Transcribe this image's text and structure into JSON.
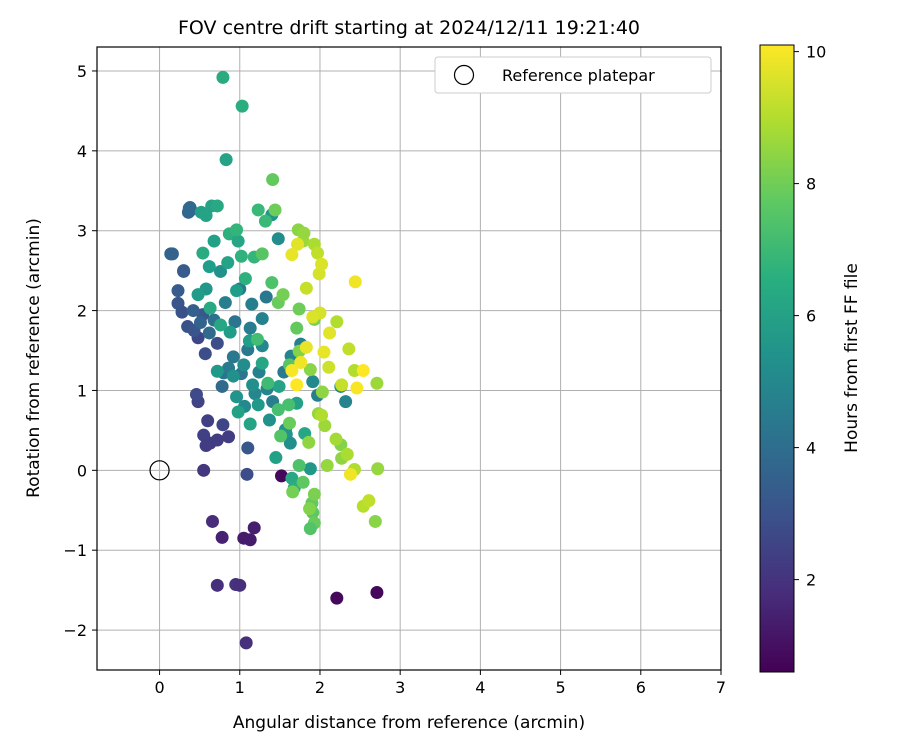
{
  "chart_data": {
    "type": "scatter",
    "title": "FOV centre drift starting at 2024/12/11 19:21:40",
    "xlabel": "Angular distance from reference (arcmin)",
    "ylabel": "Rotation from reference (arcmin)",
    "xlim": [
      -0.78,
      7.0
    ],
    "ylim": [
      -2.5,
      5.3
    ],
    "xticks": [
      0,
      1,
      2,
      3,
      4,
      5,
      6,
      7
    ],
    "yticks": [
      -2,
      -1,
      0,
      1,
      2,
      3,
      4,
      5
    ],
    "grid": true,
    "legend": {
      "position": "top-right",
      "entries": [
        "Reference platepar"
      ]
    },
    "reference_point": {
      "name": "Reference platepar",
      "x": 0,
      "y": 0,
      "marker": "open-circle"
    },
    "colorbar": {
      "label": "Hours from first FF file",
      "range": [
        0.6,
        10.1
      ],
      "ticks": [
        2,
        4,
        6,
        8,
        10
      ],
      "colormap": "viridis"
    },
    "series": [
      {
        "points": [
          [
            1.52,
            -0.07,
            0.8
          ],
          [
            2.21,
            -1.6,
            0.8
          ],
          [
            2.71,
            -1.53,
            0.8
          ],
          [
            1.05,
            -0.85,
            1.3
          ],
          [
            1.13,
            -0.87,
            1.3
          ],
          [
            1.18,
            -0.72,
            1.4
          ],
          [
            0.78,
            -0.84,
            1.5
          ],
          [
            0.66,
            -0.64,
            1.8
          ],
          [
            0.72,
            -1.44,
            1.9
          ],
          [
            0.95,
            -1.43,
            2.0
          ],
          [
            1.0,
            -1.44,
            1.9
          ],
          [
            1.08,
            -2.16,
            1.9
          ],
          [
            0.55,
            0.0,
            2.1
          ],
          [
            0.63,
            0.34,
            2.2
          ],
          [
            0.72,
            0.38,
            2.3
          ],
          [
            0.86,
            0.42,
            2.3
          ],
          [
            0.55,
            0.44,
            2.4
          ],
          [
            0.58,
            0.31,
            2.3
          ],
          [
            0.6,
            0.62,
            2.4
          ],
          [
            0.48,
            0.86,
            2.5
          ],
          [
            0.79,
            0.57,
            2.6
          ],
          [
            0.46,
            0.95,
            2.7
          ],
          [
            1.09,
            -0.05,
            2.8
          ],
          [
            1.1,
            0.28,
            3.2
          ],
          [
            0.57,
            1.46,
            2.8
          ],
          [
            0.48,
            1.66,
            2.6
          ],
          [
            0.72,
            1.59,
            2.8
          ],
          [
            0.35,
            1.8,
            3.0
          ],
          [
            0.43,
            1.75,
            3.1
          ],
          [
            0.54,
            1.95,
            3.2
          ],
          [
            0.23,
            2.09,
            3.1
          ],
          [
            0.28,
            1.98,
            3.0
          ],
          [
            0.23,
            2.25,
            3.3
          ],
          [
            0.3,
            2.5,
            3.4
          ],
          [
            0.14,
            2.71,
            3.6
          ],
          [
            0.16,
            2.71,
            3.6
          ],
          [
            0.36,
            3.23,
            3.7
          ],
          [
            0.38,
            3.29,
            3.8
          ],
          [
            0.39,
            3.26,
            3.7
          ],
          [
            0.37,
            3.28,
            3.8
          ],
          [
            0.3,
            2.49,
            3.3
          ],
          [
            0.42,
            2.0,
            3.5
          ],
          [
            0.51,
            1.85,
            3.6
          ],
          [
            0.62,
            1.72,
            3.9
          ],
          [
            0.68,
            1.88,
            4.1
          ],
          [
            0.78,
            1.05,
            3.9
          ],
          [
            0.8,
            1.22,
            4.2
          ],
          [
            0.86,
            1.28,
            4.5
          ],
          [
            0.92,
            1.42,
            4.4
          ],
          [
            1.02,
            1.21,
            4.3
          ],
          [
            1.1,
            1.51,
            4.4
          ],
          [
            0.94,
            1.86,
            4.3
          ],
          [
            0.82,
            2.1,
            4.6
          ],
          [
            1.0,
            2.27,
            4.5
          ],
          [
            1.15,
            2.08,
            4.7
          ],
          [
            1.28,
            1.9,
            4.8
          ],
          [
            1.33,
            2.17,
            4.4
          ],
          [
            1.13,
            1.78,
            4.6
          ],
          [
            1.24,
            1.23,
            4.8
          ],
          [
            1.34,
            1.02,
            4.9
          ],
          [
            1.41,
            0.86,
            4.6
          ],
          [
            1.55,
            1.23,
            4.5
          ],
          [
            2.32,
            0.86,
            4.9
          ],
          [
            2.26,
            1.05,
            5.0
          ],
          [
            1.97,
            0.94,
            4.7
          ],
          [
            1.64,
            1.43,
            4.9
          ],
          [
            1.76,
            1.58,
            4.8
          ],
          [
            1.91,
            1.11,
            5.1
          ],
          [
            1.19,
            0.96,
            5.0
          ],
          [
            1.06,
            0.8,
            5.1
          ],
          [
            1.48,
            2.9,
            5.2
          ],
          [
            1.4,
            3.2,
            5.6
          ],
          [
            1.28,
            1.56,
            5.1
          ],
          [
            1.16,
            1.07,
            5.3
          ],
          [
            1.05,
            1.32,
            5.2
          ],
          [
            0.92,
            1.18,
            5.4
          ],
          [
            0.96,
            0.92,
            5.5
          ],
          [
            1.23,
            0.82,
            5.7
          ],
          [
            1.37,
            0.63,
            5.4
          ],
          [
            1.58,
            0.45,
            5.6
          ],
          [
            1.88,
            0.02,
            5.6
          ],
          [
            1.63,
            0.34,
            5.3
          ],
          [
            1.57,
            0.51,
            5.5
          ],
          [
            0.76,
            2.49,
            5.4
          ],
          [
            0.58,
            2.27,
            5.6
          ],
          [
            0.48,
            2.2,
            5.8
          ],
          [
            0.62,
            2.55,
            5.9
          ],
          [
            0.68,
            2.87,
            6.0
          ],
          [
            0.85,
            2.6,
            6.1
          ],
          [
            0.96,
            2.25,
            5.9
          ],
          [
            0.88,
            1.73,
            5.8
          ],
          [
            0.72,
            1.24,
            5.7
          ],
          [
            0.98,
            0.73,
            6.0
          ],
          [
            1.13,
            0.58,
            6.1
          ],
          [
            1.12,
            1.62,
            5.9
          ],
          [
            1.28,
            1.34,
            6.2
          ],
          [
            1.49,
            1.05,
            6.1
          ],
          [
            1.71,
            0.84,
            6.0
          ],
          [
            1.81,
            0.46,
            6.2
          ],
          [
            1.45,
            0.16,
            6.0
          ],
          [
            1.65,
            -0.1,
            6.3
          ],
          [
            1.68,
            -0.22,
            6.5
          ],
          [
            0.65,
            3.31,
            6.1
          ],
          [
            0.52,
            3.23,
            6.0
          ],
          [
            0.58,
            3.19,
            6.1
          ],
          [
            0.72,
            3.31,
            6.3
          ],
          [
            0.54,
            2.72,
            6.4
          ],
          [
            0.63,
            2.03,
            6.3
          ],
          [
            0.76,
            1.82,
            6.2
          ],
          [
            0.87,
            2.96,
            6.6
          ],
          [
            0.98,
            2.87,
            6.2
          ],
          [
            0.83,
            3.89,
            6.1
          ],
          [
            0.79,
            4.92,
            6.4
          ],
          [
            1.03,
            4.56,
            6.5
          ],
          [
            1.07,
            2.4,
            6.6
          ],
          [
            1.02,
            2.68,
            6.7
          ],
          [
            0.96,
            3.01,
            6.8
          ],
          [
            1.18,
            2.67,
            6.9
          ],
          [
            1.32,
            3.12,
            7.0
          ],
          [
            1.23,
            3.26,
            7.0
          ],
          [
            1.41,
            3.64,
            7.8
          ],
          [
            1.44,
            3.26,
            8.0
          ],
          [
            1.28,
            2.71,
            7.6
          ],
          [
            1.4,
            2.35,
            7.4
          ],
          [
            1.22,
            1.64,
            7.2
          ],
          [
            1.35,
            1.09,
            7.1
          ],
          [
            1.48,
            0.76,
            7.3
          ],
          [
            1.51,
            0.43,
            7.5
          ],
          [
            1.74,
            0.06,
            7.4
          ],
          [
            1.79,
            -0.15,
            7.7
          ],
          [
            1.66,
            -0.27,
            8.1
          ],
          [
            1.9,
            -0.41,
            7.8
          ],
          [
            1.91,
            -0.53,
            7.7
          ],
          [
            1.93,
            -0.66,
            7.9
          ],
          [
            1.88,
            -0.73,
            7.5
          ],
          [
            1.93,
            -0.3,
            8.2
          ],
          [
            1.87,
            -0.48,
            8.3
          ],
          [
            2.27,
            0.15,
            8.5
          ],
          [
            2.26,
            0.32,
            8.3
          ],
          [
            2.09,
            0.06,
            8.6
          ],
          [
            1.61,
            0.82,
            7.3
          ],
          [
            1.62,
            1.32,
            7.6
          ],
          [
            1.71,
            1.78,
            7.8
          ],
          [
            1.48,
            2.1,
            7.9
          ],
          [
            1.54,
            2.2,
            8.1
          ],
          [
            1.74,
            2.02,
            8.0
          ],
          [
            1.93,
            1.89,
            8.2
          ],
          [
            1.74,
            1.49,
            8.3
          ],
          [
            1.88,
            1.26,
            8.4
          ],
          [
            2.03,
            0.98,
            8.5
          ],
          [
            1.98,
            0.71,
            8.6
          ],
          [
            2.06,
            0.56,
            8.7
          ],
          [
            2.2,
            0.39,
            8.8
          ],
          [
            2.34,
            0.2,
            8.9
          ],
          [
            2.43,
            0.01,
            9.0
          ],
          [
            2.54,
            -0.45,
            9.1
          ],
          [
            2.61,
            -0.38,
            9.2
          ],
          [
            2.69,
            -0.64,
            8.4
          ],
          [
            2.72,
            0.02,
            8.6
          ],
          [
            2.71,
            1.09,
            8.7
          ],
          [
            2.43,
            1.25,
            9.0
          ],
          [
            2.36,
            1.52,
            9.2
          ],
          [
            2.21,
            1.86,
            9.0
          ],
          [
            2.27,
            1.07,
            9.3
          ],
          [
            2.11,
            1.29,
            9.4
          ],
          [
            1.79,
            2.87,
            8.7
          ],
          [
            1.73,
            3.01,
            8.4
          ],
          [
            1.8,
            2.97,
            8.6
          ],
          [
            1.93,
            2.83,
            8.9
          ],
          [
            1.97,
            2.72,
            9.2
          ],
          [
            1.83,
            2.28,
            9.3
          ],
          [
            1.99,
            2.46,
            9.5
          ],
          [
            2.02,
            2.58,
            9.6
          ],
          [
            1.72,
            2.83,
            9.7
          ],
          [
            1.65,
            2.7,
            9.8
          ],
          [
            2.44,
            2.36,
            9.9
          ],
          [
            2.0,
            1.97,
            9.5
          ],
          [
            1.91,
            1.92,
            9.6
          ],
          [
            2.12,
            1.72,
            9.7
          ],
          [
            2.05,
            1.48,
            9.8
          ],
          [
            1.83,
            1.54,
            9.8
          ],
          [
            1.76,
            1.35,
            9.9
          ],
          [
            1.65,
            1.25,
            10.0
          ],
          [
            1.71,
            1.07,
            10.1
          ],
          [
            2.46,
            1.03,
            10.0
          ],
          [
            2.54,
            1.25,
            10.1
          ],
          [
            2.38,
            -0.05,
            9.9
          ],
          [
            2.02,
            0.69,
            9.0
          ],
          [
            1.86,
            0.35,
            8.5
          ],
          [
            1.62,
            0.59,
            7.9
          ]
        ]
      }
    ]
  }
}
